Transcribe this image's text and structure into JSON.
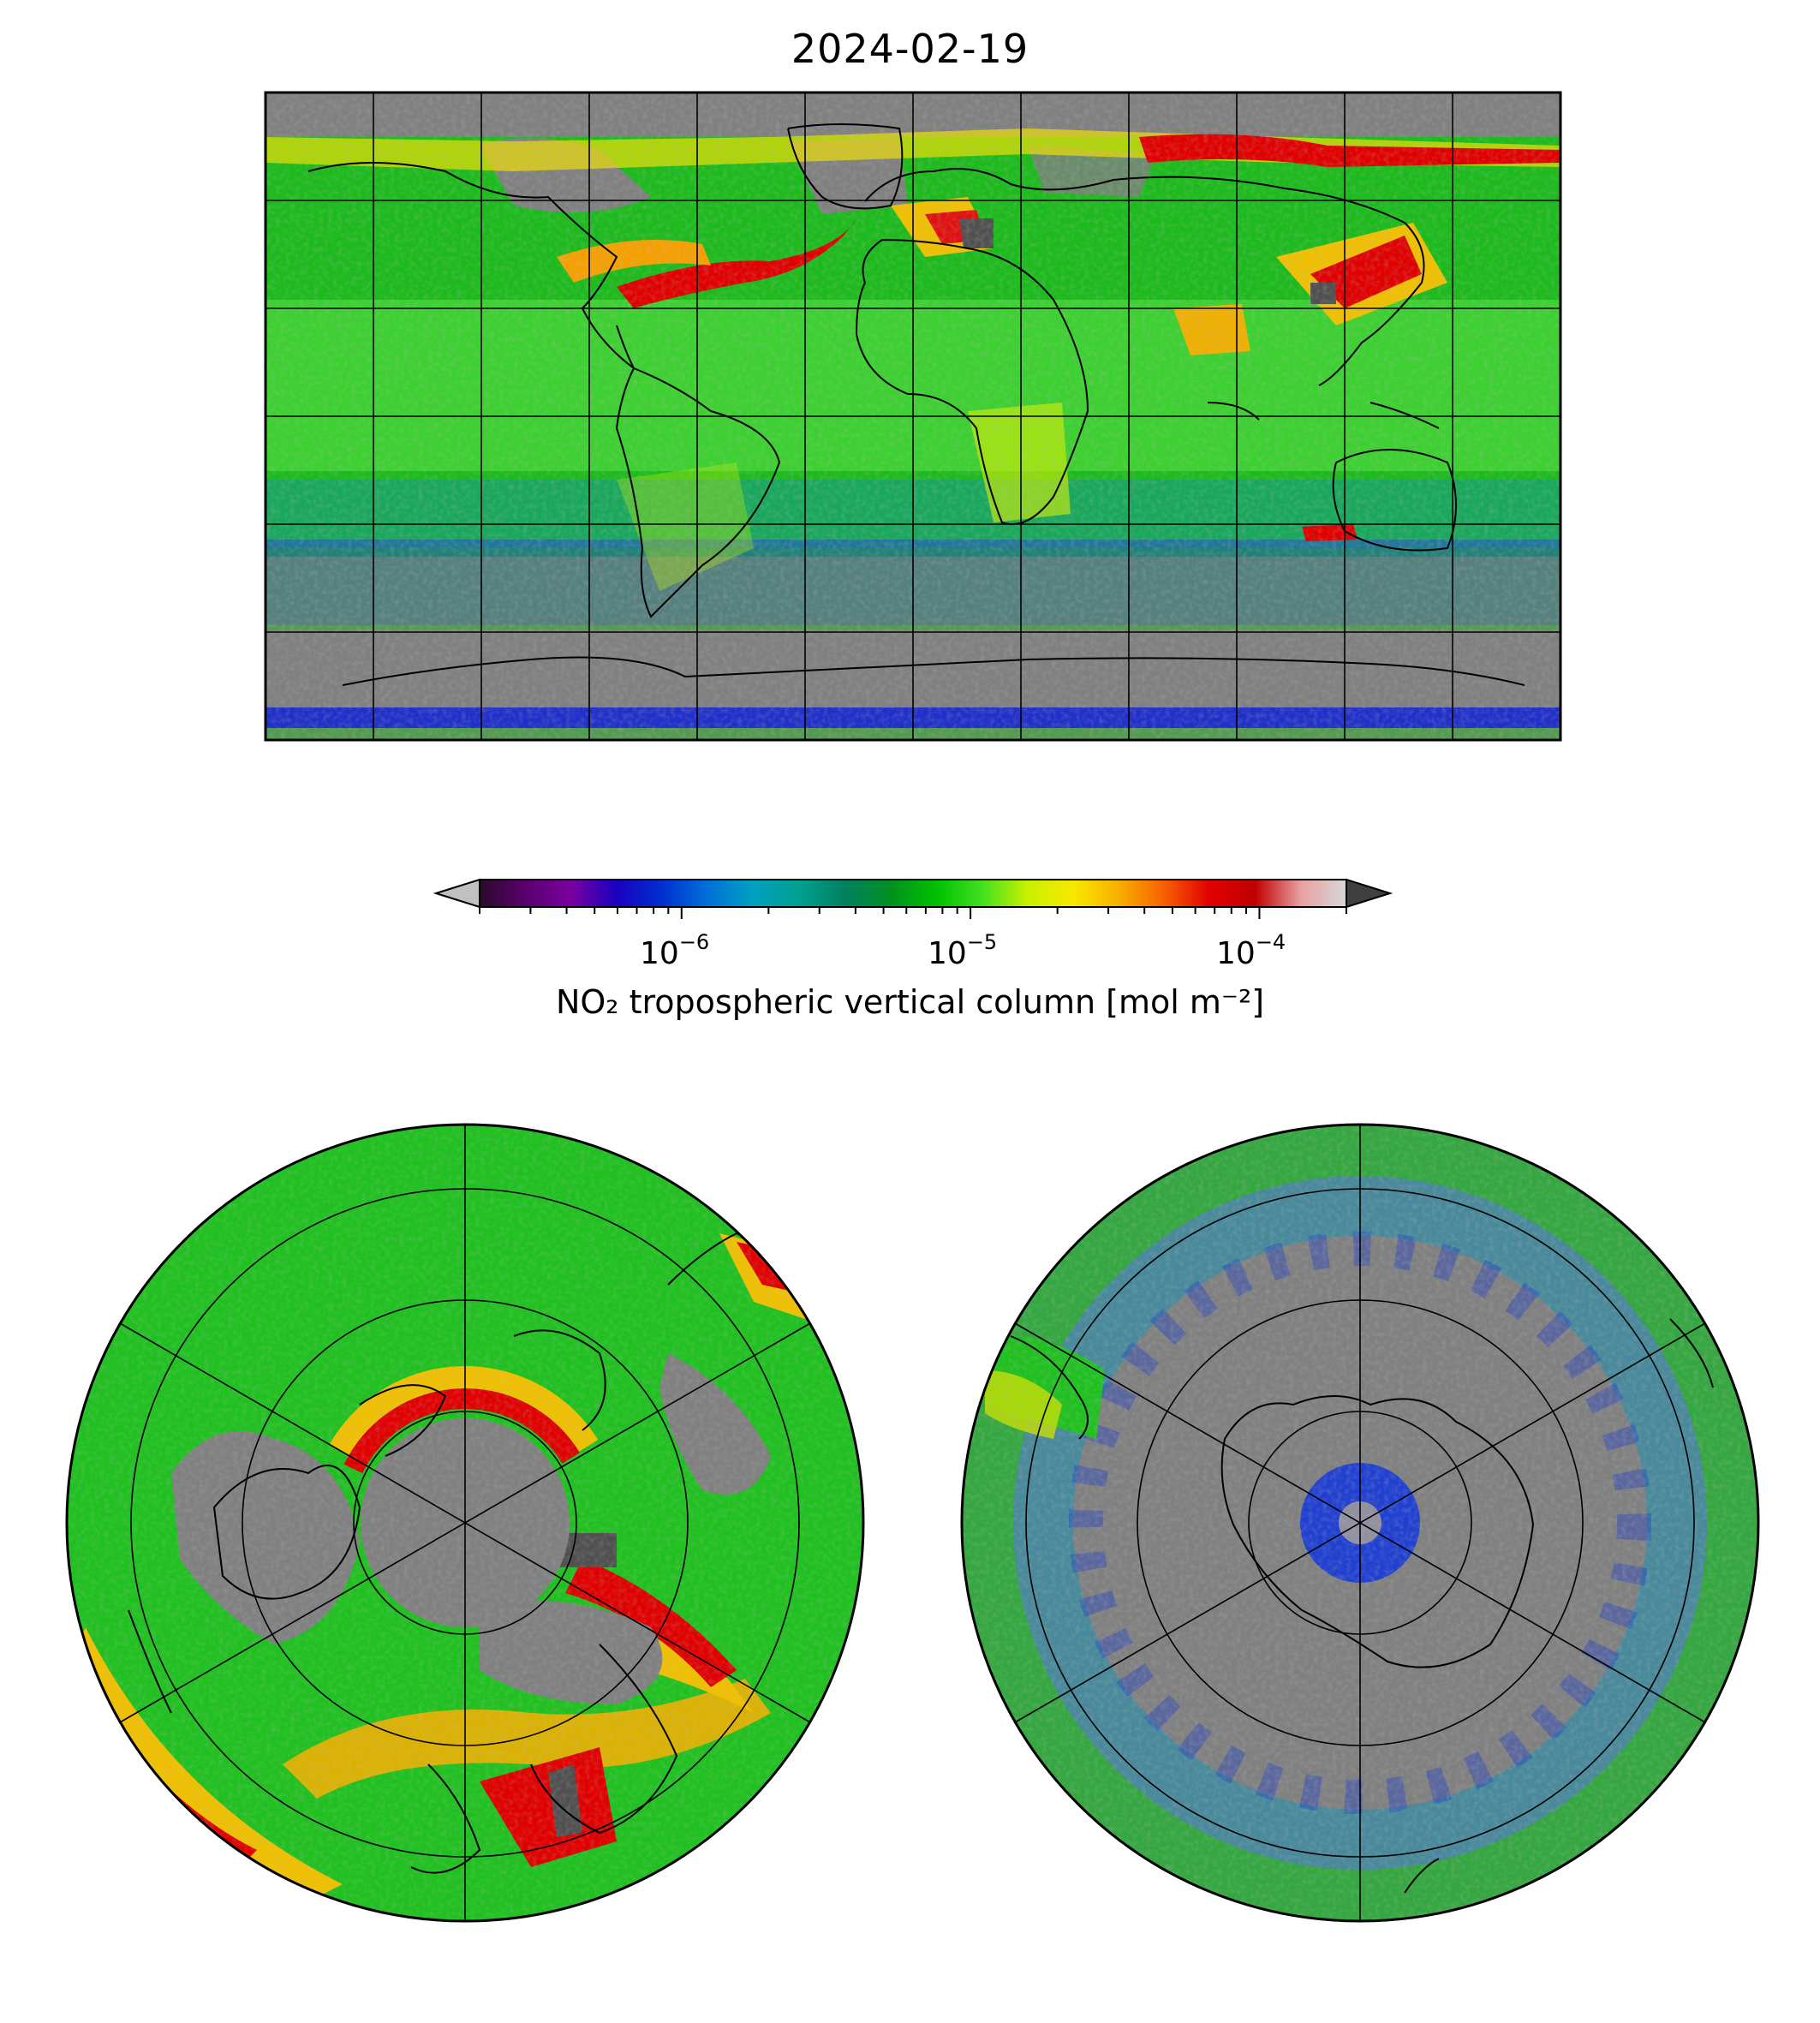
{
  "title": "2024-02-19",
  "colorbar": {
    "label": "NO₂ tropospheric vertical column [mol m⁻²]",
    "scale": "log",
    "range": [
      2e-07,
      0.0002
    ],
    "ticks": [
      {
        "base": "10",
        "exp": "−6"
      },
      {
        "base": "10",
        "exp": "−5"
      },
      {
        "base": "10",
        "exp": "−4"
      }
    ],
    "colors": [
      "#2a0a2a",
      "#5a006e",
      "#7a00a0",
      "#1a00c0",
      "#0030d0",
      "#0070d8",
      "#00a0c0",
      "#00a090",
      "#008060",
      "#009020",
      "#00c000",
      "#40e020",
      "#c8f000",
      "#f8e800",
      "#f8b000",
      "#f86000",
      "#e00000",
      "#c00000",
      "#e8a0a0",
      "#d8d8d8"
    ],
    "under_color": "#c0c0c0",
    "over_color": "#404040"
  },
  "map_colors": {
    "no_data": "#808080",
    "ocean_background": "#18b818",
    "coastline": "#000000"
  },
  "panels": [
    {
      "name": "global",
      "projection": "plate carree"
    },
    {
      "name": "north-pole",
      "projection": "north polar stereographic"
    },
    {
      "name": "south-pole",
      "projection": "south polar stereographic"
    }
  ]
}
